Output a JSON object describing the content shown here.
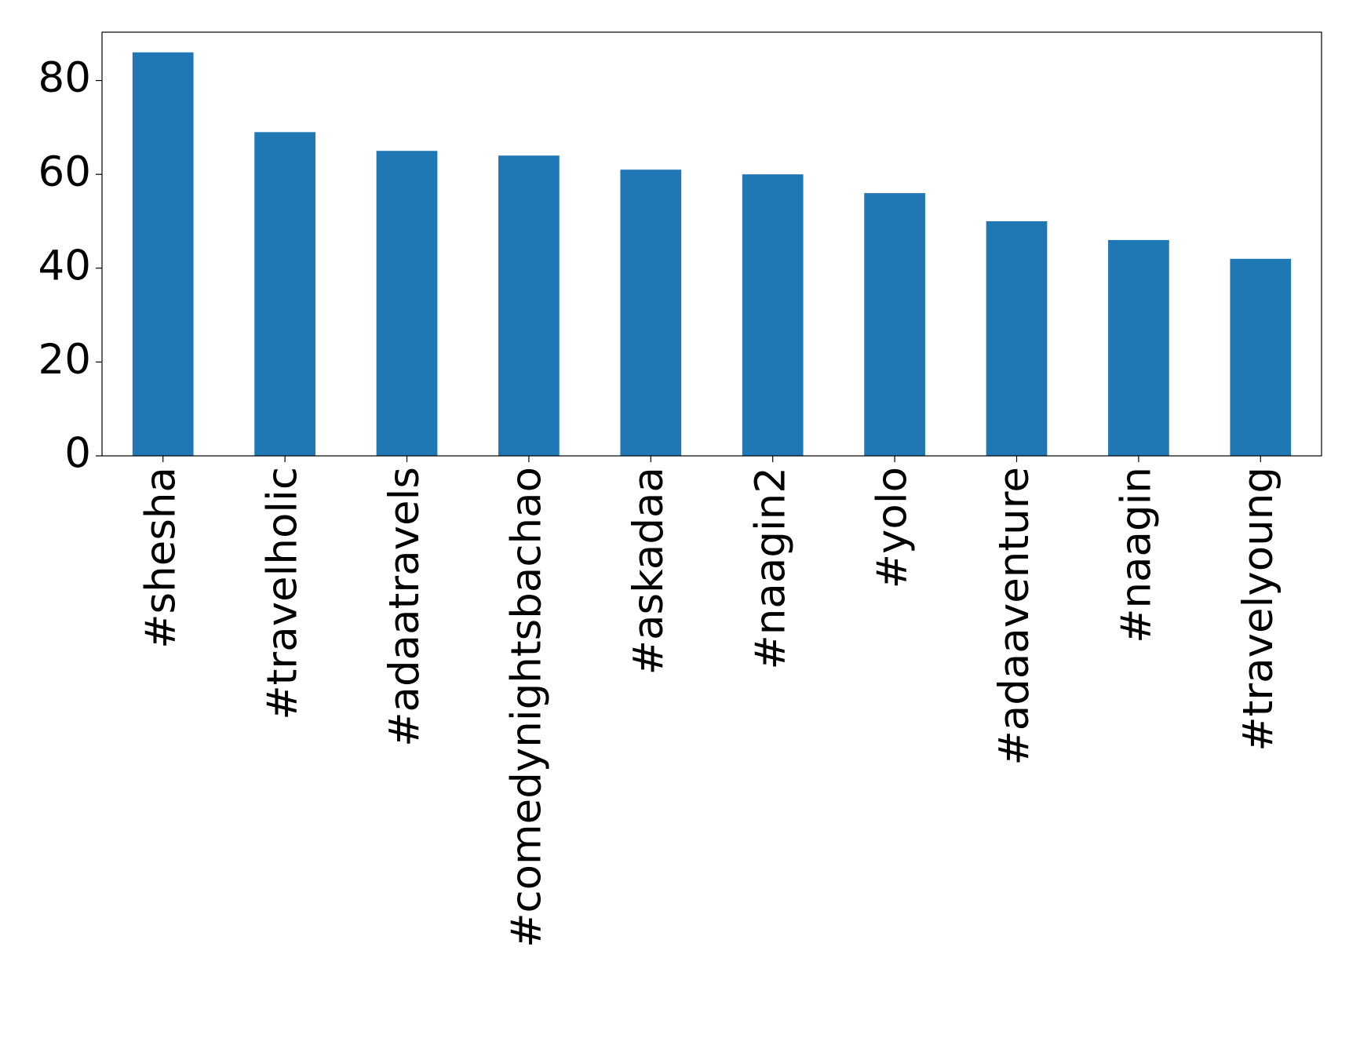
{
  "chart_data": {
    "type": "bar",
    "categories": [
      "#shesha",
      "#travelholic",
      "#adaatravels",
      "#comedynightsbachao",
      "#askadaa",
      "#naagin2",
      "#yolo",
      "#adaaventure",
      "#naagin",
      "#travelyoung"
    ],
    "values": [
      86,
      69,
      65,
      64,
      61,
      60,
      56,
      50,
      46,
      42
    ],
    "color": "#1f77b4",
    "ylim": [
      0,
      90.3
    ],
    "yticks": [
      0,
      20,
      40,
      60,
      80
    ],
    "grid": false
  }
}
